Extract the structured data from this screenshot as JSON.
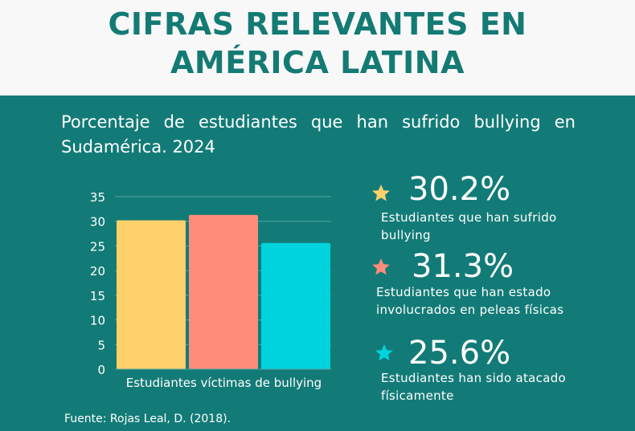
{
  "header": {
    "title_line1": "CIFRAS RELEVANTES EN",
    "title_line2": "AMÉRICA LATINA"
  },
  "subtitle": "Porcentaje de estudiantes que han sufrido bullying en Sudamérica. 2024",
  "chart_data": {
    "type": "bar",
    "categories": [
      "Estudiantes víctimas de bullying"
    ],
    "series": [
      {
        "values": [
          30.2
        ],
        "color": "#fdd06a"
      },
      {
        "values": [
          31.3
        ],
        "color": "#fd8c7a"
      },
      {
        "values": [
          25.6
        ],
        "color": "#00d3dc"
      }
    ],
    "ylim": [
      0,
      35
    ],
    "yticks": [
      "0",
      "5",
      "10",
      "15",
      "20",
      "25",
      "30",
      "35"
    ],
    "grid": true
  },
  "stats": [
    {
      "value": "30.2%",
      "description": "Estudiantes que han sufrido bullying",
      "star_color": "#fdd06a"
    },
    {
      "value": "31.3%",
      "description": "Estudiantes que han estado involucrados en peleas físicas",
      "star_color": "#fd8c7a"
    },
    {
      "value": "25.6%",
      "description": "Estudiantes han sido atacado físicamente",
      "star_color": "#00d3dc"
    }
  ],
  "source": "Fuente:  Rojas Leal, D. (2018)."
}
